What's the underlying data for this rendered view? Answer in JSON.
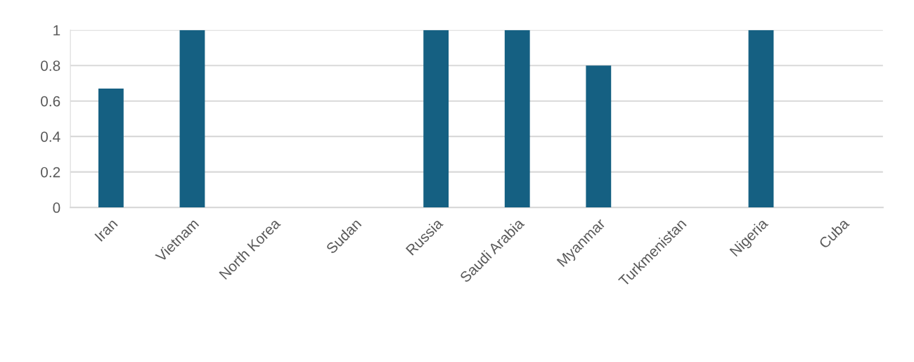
{
  "chart_data": {
    "type": "bar",
    "categories": [
      "Iran",
      "Vietnam",
      "North Korea",
      "Sudan",
      "Russia",
      "Saudi Arabia",
      "Myanmar",
      "Turkmenistan",
      "Nigeria",
      "Cuba"
    ],
    "values": [
      0.67,
      1,
      0,
      0,
      1,
      1,
      0.8,
      0,
      1,
      0
    ],
    "color": "#156082",
    "ylim": [
      0,
      1
    ],
    "yticks": [
      0,
      0.2,
      0.4,
      0.6,
      0.8,
      1
    ],
    "grid": "y"
  }
}
